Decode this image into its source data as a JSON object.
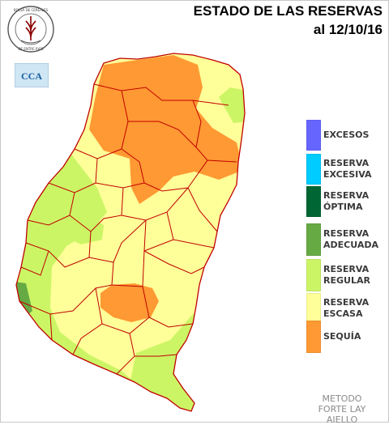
{
  "header": {
    "title_line1": "ESTADO DE LAS RESERVAS",
    "title_line2": "al 12/10/16"
  },
  "logos": {
    "seal_text": "BOLSA DE CEREALES DE ENTRE RIOS",
    "cca_text": "CCA"
  },
  "legend": [
    {
      "label": "EXCESOS",
      "color": "#6666ff"
    },
    {
      "label": "RESERVA EXCESIVA",
      "color": "#00ccff"
    },
    {
      "label": "RESERVA ÓPTIMA",
      "color": "#006633"
    },
    {
      "label": "RESERVA ADECUADA",
      "color": "#66aa44"
    },
    {
      "label": "RESERVA REGULAR",
      "color": "#ccf566"
    },
    {
      "label": "RESERVA ESCASA",
      "color": "#ffff99"
    },
    {
      "label": "SEQUÍA",
      "color": "#ff9933"
    }
  ],
  "footer": {
    "method_line1": "METODO",
    "method_line2": "FORTE LAY",
    "method_line3": "AIELLO"
  }
}
